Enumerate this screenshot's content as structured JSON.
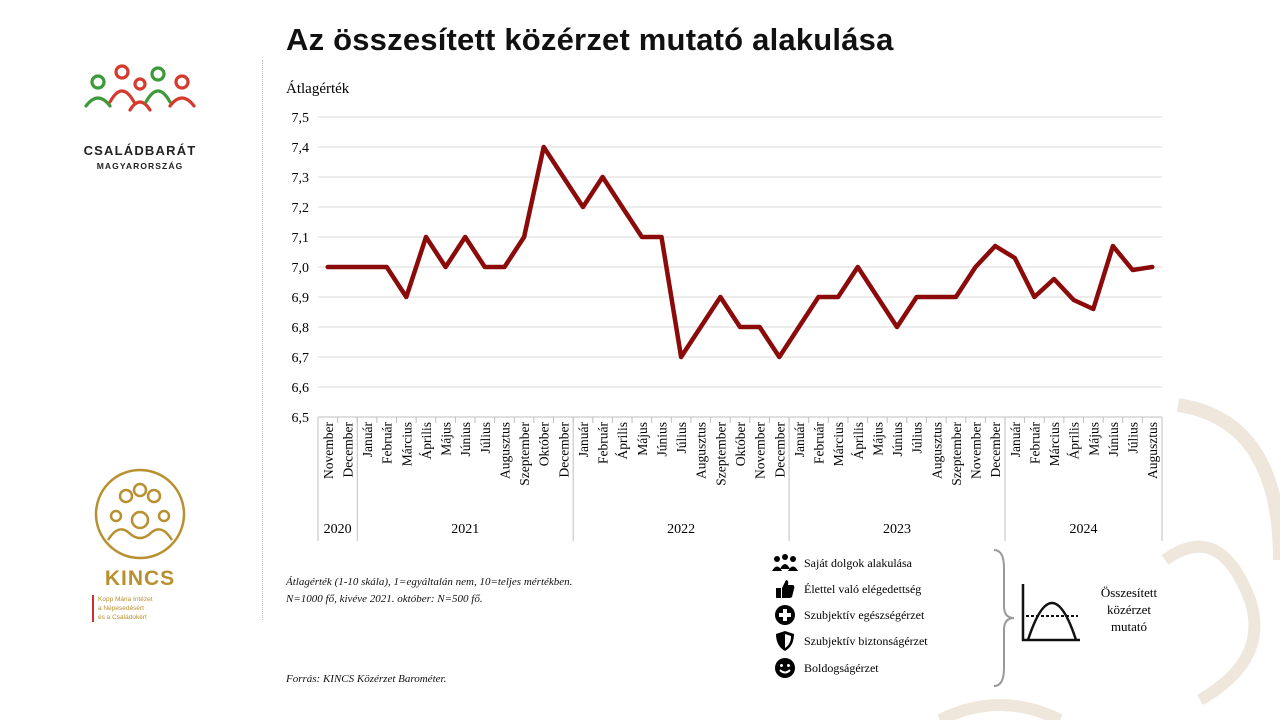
{
  "title": "Az összesített közérzet mutató alakulása",
  "logos": {
    "top": {
      "name": "CSALÁDBARÁT",
      "sub": "MAGYARORSZÁG"
    },
    "bottom": {
      "name": "KINCS",
      "sub1": "Kopp Mária Intézet",
      "sub2": "a Népesedésért",
      "sub3": "és a Családokért"
    }
  },
  "notes": {
    "scale": "Átlagérték (1-10 skála), 1=egyáltalán nem, 10=teljes mértékben.",
    "sample": "N=1000 fő, kivéve 2021. október: N=500 fő.",
    "source": "Forrás: KINCS Közérzet Barométer."
  },
  "legend": [
    {
      "label": "Saját dolgok alakulása",
      "icon": "people-icon"
    },
    {
      "label": "Élettel való elégedettség",
      "icon": "thumbs-up-icon"
    },
    {
      "label": "Szubjektív egészségérzet",
      "icon": "health-cross-icon"
    },
    {
      "label": "Szubjektív biztonságérzet",
      "icon": "shield-icon"
    },
    {
      "label": "Boldogságérzet",
      "icon": "smiley-icon"
    }
  ],
  "composite_label": [
    "Összesített",
    "közérzet",
    "mutató"
  ],
  "colors": {
    "line": "#8b0a0a",
    "grid": "#d9d9d9",
    "kincs_gold": "#b8902f",
    "logo_green": "#3d9a3a",
    "logo_red": "#d63a2f"
  },
  "chart_data": {
    "type": "line",
    "ylabel": "Átlagérték",
    "ylim": [
      6.5,
      7.5
    ],
    "yticks": [
      "6,5",
      "6,6",
      "6,7",
      "6,8",
      "6,9",
      "7,0",
      "7,1",
      "7,2",
      "7,3",
      "7,4",
      "7,5"
    ],
    "categories": [
      "November",
      "December",
      "Január",
      "Február",
      "Március",
      "Április",
      "Május",
      "Június",
      "Július",
      "Augusztus",
      "Szeptember",
      "Október",
      "December",
      "Január",
      "Február",
      "Április",
      "Május",
      "Június",
      "Július",
      "Augusztus",
      "Szeptember",
      "Október",
      "November",
      "December",
      "Január",
      "Február",
      "Március",
      "Április",
      "Május",
      "Június",
      "Július",
      "Augusztus",
      "Szeptember",
      "November",
      "December",
      "Január",
      "Február",
      "Március",
      "Április",
      "Május",
      "Június",
      "Július",
      "Augusztus"
    ],
    "years": [
      {
        "label": "2020",
        "start": 0,
        "end": 1
      },
      {
        "label": "2021",
        "start": 2,
        "end": 12
      },
      {
        "label": "2022",
        "start": 13,
        "end": 23
      },
      {
        "label": "2023",
        "start": 24,
        "end": 34
      },
      {
        "label": "2024",
        "start": 35,
        "end": 42
      }
    ],
    "values": [
      7.0,
      7.0,
      7.0,
      7.0,
      6.9,
      7.1,
      7.0,
      7.1,
      7.0,
      7.0,
      7.1,
      7.4,
      7.3,
      7.2,
      7.3,
      7.2,
      7.1,
      7.1,
      6.7,
      6.8,
      6.9,
      6.8,
      6.8,
      6.7,
      6.8,
      6.9,
      6.9,
      7.0,
      6.9,
      6.8,
      6.9,
      6.9,
      6.9,
      7.0,
      7.07,
      7.03,
      6.9,
      6.96,
      6.89,
      6.86,
      7.07,
      6.99,
      7.0
    ],
    "grid": true
  }
}
